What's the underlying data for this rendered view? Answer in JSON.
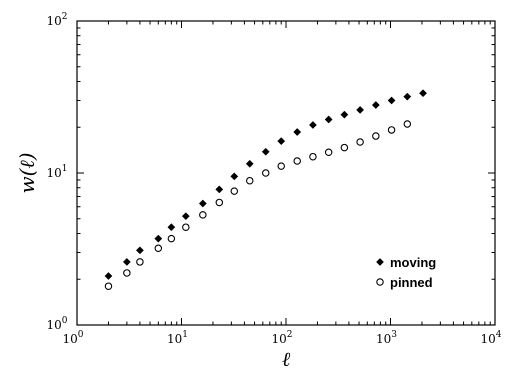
{
  "chart_data": {
    "type": "scatter",
    "xlabel": "ℓ",
    "ylabel": "w(ℓ)",
    "x_scale": "log",
    "y_scale": "log",
    "xlim": [
      1,
      10000
    ],
    "ylim": [
      1,
      100
    ],
    "x_ticks": [
      {
        "value": 1,
        "base": "10",
        "exp": "0"
      },
      {
        "value": 10,
        "base": "10",
        "exp": "1"
      },
      {
        "value": 100,
        "base": "10",
        "exp": "2"
      },
      {
        "value": 1000,
        "base": "10",
        "exp": "3"
      },
      {
        "value": 10000,
        "base": "10",
        "exp": "4"
      }
    ],
    "y_ticks": [
      {
        "value": 1,
        "base": "10",
        "exp": "0"
      },
      {
        "value": 10,
        "base": "10",
        "exp": "1"
      },
      {
        "value": 100,
        "base": "10",
        "exp": "2"
      }
    ],
    "grid": false,
    "legend_position": "bottom-right",
    "series": [
      {
        "name": "moving",
        "marker": "filled-diamond",
        "color": "#000000",
        "x": [
          2,
          3,
          4,
          6,
          8,
          11,
          16,
          23,
          32,
          45,
          64,
          90,
          128,
          181,
          256,
          362,
          512,
          724,
          1024,
          1448,
          2048
        ],
        "y": [
          2.1,
          2.6,
          3.1,
          3.7,
          4.4,
          5.2,
          6.3,
          7.8,
          9.5,
          11.5,
          13.8,
          16.2,
          18.6,
          20.7,
          22.5,
          24.2,
          26.0,
          28.0,
          30.0,
          31.8,
          33.5
        ]
      },
      {
        "name": "pinned",
        "marker": "open-circle",
        "color": "#000000",
        "x": [
          2,
          3,
          4,
          6,
          8,
          11,
          16,
          23,
          32,
          45,
          64,
          90,
          128,
          181,
          256,
          362,
          512,
          724,
          1024,
          1448
        ],
        "y": [
          1.8,
          2.2,
          2.6,
          3.2,
          3.7,
          4.4,
          5.3,
          6.4,
          7.6,
          8.9,
          10.0,
          11.1,
          12.0,
          12.8,
          13.7,
          14.7,
          16.0,
          17.5,
          19.2,
          21.0
        ]
      }
    ]
  }
}
